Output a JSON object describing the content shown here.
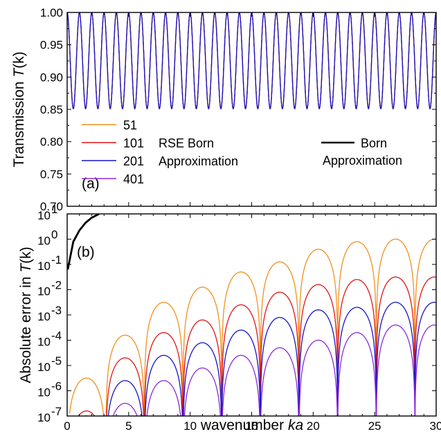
{
  "chart_data": [
    {
      "panel_label": "(a)",
      "type": "line",
      "ylabel_text": "Transmission ",
      "ylabel_var": "T",
      "ylabel_arg": "(k)",
      "xlim": [
        0,
        30
      ],
      "ylim": [
        0.7,
        1.0
      ],
      "yticks": [
        "0.70",
        "0.75",
        "0.80",
        "0.85",
        "0.90",
        "0.95",
        "1.00"
      ],
      "series": [
        {
          "name": "201",
          "color": "#1414c8",
          "T_min": 0.851,
          "T_max": 1.0,
          "oscillations_per_unit_ka": 1.0
        }
      ],
      "legend": {
        "entries": [
          {
            "name": "51",
            "color": "#f0901e"
          },
          {
            "name": "101",
            "color": "#e01414"
          },
          {
            "name": "201",
            "color": "#1414c8"
          },
          {
            "name": "401",
            "color": "#8c28dc"
          }
        ],
        "group_label_1": "RSE Born",
        "group_label_2": "Approximation",
        "born_entry_1": "Born",
        "born_entry_2": "Approximation",
        "born_color": "#000000"
      }
    },
    {
      "panel_label": "(b)",
      "type": "line",
      "scale": "log",
      "ylabel_text": "Absolute error in ",
      "ylabel_var": "T",
      "ylabel_arg": "(k)",
      "xlabel_text": "wavenumber ",
      "xlabel_var": "ka",
      "xlim": [
        0,
        30
      ],
      "ylim": [
        1e-07,
        10
      ],
      "xticks": [
        "0",
        "5",
        "10",
        "15",
        "20",
        "25",
        "30"
      ],
      "ytick_exponents": [
        "-7",
        "-6",
        "-5",
        "-4",
        "-3",
        "-2",
        "-1",
        "0",
        "1"
      ],
      "ytick_base": "10",
      "series": [
        {
          "name": "51",
          "color": "#f0901e",
          "log10_error_peaks": [
            -5.5,
            -3.8,
            -2.5,
            -1.9,
            -1.3,
            -0.9,
            -0.4,
            -0.1,
            0.0
          ]
        },
        {
          "name": "101",
          "color": "#e01414",
          "log10_error_peaks": [
            -6.8,
            -4.7,
            -3.7,
            -3.2,
            -2.6,
            -2.1,
            -1.8,
            -1.6,
            -1.5
          ]
        },
        {
          "name": "201",
          "color": "#1414c8",
          "log10_error_peaks": [
            -7.0,
            -5.6,
            -4.6,
            -4.1,
            -3.6,
            -3.1,
            -2.8,
            -2.7,
            -2.5
          ]
        },
        {
          "name": "401",
          "color": "#8c28dc",
          "log10_error_peaks": [
            -7.0,
            -6.5,
            -5.6,
            -5.1,
            -4.6,
            -4.3,
            -4.0,
            -3.7,
            -3.4
          ]
        },
        {
          "name": "Born Approximation",
          "color": "#000000",
          "x": [
            0.05,
            0.5,
            1.0,
            1.5,
            2.0,
            2.6
          ],
          "log10_error": [
            -1.2,
            -0.1,
            0.35,
            0.65,
            0.85,
            1.0
          ]
        }
      ]
    }
  ]
}
